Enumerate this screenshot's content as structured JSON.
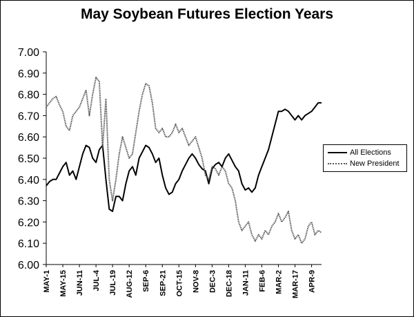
{
  "chart_data": {
    "type": "line",
    "title": "May Soybean Futures Election Years",
    "xlabel": "",
    "ylabel": "",
    "ylim": [
      6.0,
      7.0
    ],
    "yticks": [
      "7.00",
      "6.90",
      "6.80",
      "6.70",
      "6.60",
      "6.50",
      "6.40",
      "6.30",
      "6.20",
      "6.10",
      "6.00"
    ],
    "categories": [
      "MAY-1",
      "MAY-15",
      "JUN-11",
      "JUL-4",
      "JUL-19",
      "AUG-12",
      "SEP-6",
      "SEP-21",
      "OCT-15",
      "NOV-8",
      "DEC-3",
      "DEC-18",
      "JAN-11",
      "FEB-6",
      "MAR-2",
      "MAR-17",
      "APR-9"
    ],
    "legend_position": "right",
    "grid": false,
    "series": [
      {
        "name": "All Elections",
        "color": "#000000",
        "style": "solid",
        "x": [
          0,
          0.2,
          0.4,
          0.6,
          0.8,
          1,
          1.2,
          1.4,
          1.6,
          1.8,
          2,
          2.2,
          2.4,
          2.6,
          2.8,
          3,
          3.2,
          3.4,
          3.6,
          3.8,
          4,
          4.2,
          4.4,
          4.6,
          4.8,
          5,
          5.2,
          5.4,
          5.6,
          5.8,
          6,
          6.2,
          6.4,
          6.6,
          6.8,
          7,
          7.2,
          7.4,
          7.6,
          7.8,
          8,
          8.2,
          8.4,
          8.6,
          8.8,
          9,
          9.2,
          9.4,
          9.6,
          9.8,
          10,
          10.2,
          10.4,
          10.6,
          10.8,
          11,
          11.2,
          11.4,
          11.6,
          11.8,
          12,
          12.2,
          12.4,
          12.6,
          12.8,
          13,
          13.2,
          13.4,
          13.6,
          13.8,
          14,
          14.2,
          14.4,
          14.6,
          14.8,
          15,
          15.2,
          15.4,
          15.6,
          15.8,
          16,
          16.2,
          16.4,
          16.6
        ],
        "values": [
          6.37,
          6.39,
          6.4,
          6.4,
          6.43,
          6.46,
          6.48,
          6.42,
          6.44,
          6.4,
          6.46,
          6.52,
          6.56,
          6.55,
          6.5,
          6.48,
          6.54,
          6.56,
          6.4,
          6.26,
          6.25,
          6.32,
          6.32,
          6.3,
          6.38,
          6.44,
          6.46,
          6.42,
          6.5,
          6.53,
          6.56,
          6.55,
          6.52,
          6.48,
          6.5,
          6.42,
          6.36,
          6.33,
          6.34,
          6.38,
          6.4,
          6.44,
          6.47,
          6.5,
          6.52,
          6.5,
          6.47,
          6.45,
          6.44,
          6.38,
          6.45,
          6.47,
          6.48,
          6.46,
          6.5,
          6.52,
          6.49,
          6.46,
          6.44,
          6.38,
          6.35,
          6.36,
          6.34,
          6.36,
          6.42,
          6.46,
          6.5,
          6.54,
          6.6,
          6.66,
          6.72,
          6.72,
          6.73,
          6.72,
          6.7,
          6.68,
          6.7,
          6.68,
          6.7,
          6.71,
          6.72,
          6.74,
          6.76,
          6.76
        ]
      },
      {
        "name": "New President",
        "color": "#555555",
        "style": "dotted",
        "x": [
          0,
          0.2,
          0.4,
          0.6,
          0.8,
          1,
          1.2,
          1.4,
          1.6,
          1.8,
          2,
          2.2,
          2.4,
          2.6,
          2.8,
          3,
          3.2,
          3.4,
          3.6,
          3.8,
          4,
          4.2,
          4.4,
          4.6,
          4.8,
          5,
          5.2,
          5.4,
          5.6,
          5.8,
          6,
          6.2,
          6.4,
          6.6,
          6.8,
          7,
          7.2,
          7.4,
          7.6,
          7.8,
          8,
          8.2,
          8.4,
          8.6,
          8.8,
          9,
          9.2,
          9.4,
          9.6,
          9.8,
          10,
          10.2,
          10.4,
          10.6,
          10.8,
          11,
          11.2,
          11.4,
          11.6,
          11.8,
          12,
          12.2,
          12.4,
          12.6,
          12.8,
          13,
          13.2,
          13.4,
          13.6,
          13.8,
          14,
          14.2,
          14.4,
          14.6,
          14.8,
          15,
          15.2,
          15.4,
          15.6,
          15.8,
          16,
          16.2,
          16.4,
          16.6
        ],
        "values": [
          6.74,
          6.76,
          6.78,
          6.79,
          6.75,
          6.72,
          6.65,
          6.63,
          6.7,
          6.72,
          6.74,
          6.78,
          6.82,
          6.7,
          6.8,
          6.88,
          6.86,
          6.55,
          6.78,
          6.4,
          6.3,
          6.4,
          6.52,
          6.6,
          6.55,
          6.5,
          6.52,
          6.62,
          6.72,
          6.8,
          6.85,
          6.84,
          6.76,
          6.64,
          6.62,
          6.64,
          6.6,
          6.6,
          6.62,
          6.66,
          6.62,
          6.64,
          6.6,
          6.56,
          6.58,
          6.6,
          6.55,
          6.5,
          6.42,
          6.4,
          6.46,
          6.45,
          6.42,
          6.46,
          6.44,
          6.38,
          6.36,
          6.3,
          6.2,
          6.16,
          6.18,
          6.2,
          6.14,
          6.11,
          6.14,
          6.12,
          6.16,
          6.14,
          6.18,
          6.2,
          6.24,
          6.2,
          6.22,
          6.25,
          6.16,
          6.12,
          6.14,
          6.1,
          6.12,
          6.18,
          6.2,
          6.14,
          6.16,
          6.15
        ]
      }
    ]
  }
}
